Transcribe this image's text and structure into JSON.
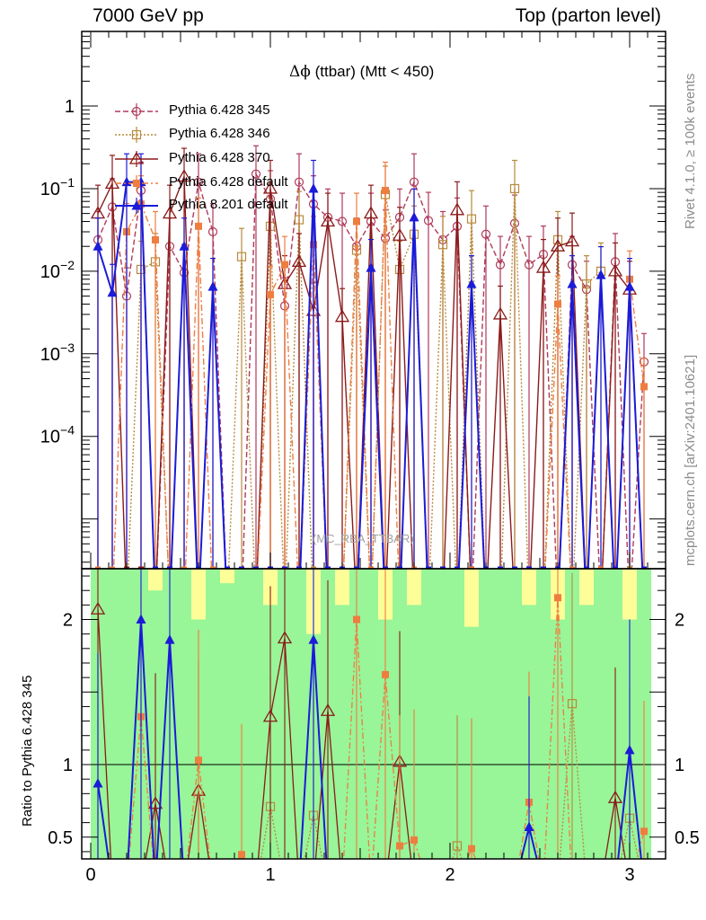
{
  "header": {
    "left": "7000 GeV pp",
    "right": "Top (parton level)"
  },
  "title": {
    "symbol": "Δϕ",
    "text": " (ttbar) (Mtt < 450)"
  },
  "side": {
    "rivet": "Rivet 4.1.0, ≥ 100k events",
    "mcplots": "mcplots.cern.ch [arXiv:2401.10621]"
  },
  "watermark": "(MC_RBA_TTBAR)",
  "colors": {
    "p345": "#b03a5b",
    "p346": "#b88a3c",
    "p370": "#8b1a1a",
    "p6def": "#ee7d40",
    "p8": "#1b1bd8",
    "band_green": "#98f598",
    "band_yellow": "#fefe98"
  },
  "chart_data": {
    "type": "scatter",
    "main": {
      "xlim": [
        -0.05,
        3.2
      ],
      "yscale": "log",
      "ylim": [
        2.5e-06,
        8
      ],
      "ytick_labels": [
        "1",
        "10^-1",
        "10^-2",
        "10^-3",
        "10^-4"
      ],
      "ytick_values": [
        1,
        0.1,
        0.01,
        0.001,
        0.0001
      ]
    },
    "ratio": {
      "ylim": [
        0.35,
        2.35
      ],
      "ylabel": "Ratio to Pythia 6.428 345",
      "ytick_labels": [
        "0.5",
        "1",
        "2"
      ],
      "ytick_values": [
        0.5,
        1,
        2
      ]
    },
    "x_tick_labels": [
      "0",
      "1",
      "2",
      "3"
    ],
    "x_tick_values": [
      0,
      1,
      2,
      3
    ],
    "x": [
      0.04,
      0.12,
      0.2,
      0.28,
      0.36,
      0.44,
      0.52,
      0.6,
      0.68,
      0.76,
      0.84,
      0.92,
      1.0,
      1.08,
      1.16,
      1.24,
      1.32,
      1.4,
      1.48,
      1.56,
      1.64,
      1.72,
      1.8,
      1.88,
      1.96,
      2.04,
      2.12,
      2.2,
      2.28,
      2.36,
      2.44,
      2.52,
      2.6,
      2.68,
      2.76,
      2.84,
      2.92,
      3.0,
      3.08
    ],
    "series": [
      {
        "name": "Pythia 6.428 345",
        "key": "p345",
        "marker": "open-circle",
        "line": "dash",
        "values": [
          0.024,
          0.06,
          0.005,
          0.095,
          0.0,
          0.02,
          0.0096,
          0.12,
          0.03,
          0.0,
          0.0,
          0.15,
          0.075,
          0.0038,
          0.12,
          0.065,
          0.045,
          0.04,
          0.02,
          0.04,
          0.025,
          0.045,
          0.12,
          0.041,
          0.024,
          0.035,
          0.0,
          0.028,
          0.012,
          0.038,
          0.012,
          0.016,
          0.0,
          0.012,
          0.006,
          0.0,
          0.013,
          0.0,
          0.0008
        ]
      },
      {
        "name": "Pythia 6.428 346",
        "key": "p346",
        "marker": "open-square",
        "line": "dot",
        "values": [
          0.0,
          0.0,
          0.0,
          0.0105,
          0.013,
          0.0,
          0.0,
          0.0,
          0.0,
          0.0,
          0.015,
          0.0,
          0.035,
          0.0,
          0.042,
          0.0,
          0.0,
          0.0,
          0.018,
          0.0,
          0.085,
          0.0105,
          0.028,
          0.0,
          0.021,
          0.0,
          0.043,
          0.0,
          0.0,
          0.1,
          0.0,
          0.0,
          0.024,
          0.0,
          0.007,
          0.01,
          0.0,
          0.0,
          0.0
        ]
      },
      {
        "name": "Pythia 6.428 370",
        "key": "p370",
        "marker": "open-triangle",
        "line": "solid",
        "values": [
          0.05,
          0.115,
          0.0,
          0.0,
          0.0,
          0.05,
          0.14,
          0.0,
          0.0,
          0.0,
          0.0,
          0.0,
          0.1,
          0.007,
          0.013,
          0.0033,
          0.04,
          0.0028,
          0.0,
          0.05,
          0.0,
          0.027,
          0.0,
          0.0,
          0.0,
          0.055,
          0.0,
          0.0,
          0.003,
          0.0,
          0.0,
          0.011,
          0.02,
          0.023,
          0.0,
          0.0,
          0.01,
          0.006,
          0.0
        ]
      },
      {
        "name": "Pythia 6.428 default",
        "key": "p6def",
        "marker": "filled-square",
        "line": "dashdot",
        "values": [
          0.0,
          0.0,
          0.03,
          0.065,
          0.024,
          0.0,
          0.0,
          0.035,
          0.0,
          0.0,
          0.0,
          0.0,
          0.0052,
          0.012,
          0.0,
          0.021,
          0.0,
          0.0,
          0.04,
          0.0,
          0.095,
          0.0,
          0.0,
          0.0,
          0.0,
          0.0,
          0.0,
          0.0,
          0.0,
          0.0,
          0.0,
          0.0,
          0.004,
          0.0,
          0.0,
          0.0,
          0.0,
          0.008,
          0.0004
        ]
      },
      {
        "name": "Pythia 8.201 default",
        "key": "p8",
        "marker": "filled-triangle",
        "line": "solid",
        "values": [
          0.02,
          0.0055,
          0.12,
          0.12,
          0.0,
          0.0,
          0.02,
          0.0,
          0.0065,
          0.0,
          0.0,
          0.0,
          0.0,
          0.0,
          0.0,
          0.1,
          0.0,
          0.0,
          0.0,
          0.011,
          0.0,
          0.0,
          0.045,
          0.0,
          0.0,
          0.0,
          0.007,
          0.0,
          0.0,
          0.0,
          0.0,
          0.0,
          0.0,
          0.007,
          0.0,
          0.009,
          0.0,
          0.0065,
          0.0
        ]
      }
    ],
    "ratio_points": {
      "p346": [
        0.0,
        0.0,
        0.0,
        0.0,
        0.0,
        0.0,
        0.0,
        0.0,
        0.0,
        0.0,
        0.0,
        0.0,
        0.71,
        0.0,
        0.0,
        0.65,
        0.0,
        0.0,
        0.0,
        0.0,
        0.0,
        0.0,
        0.0,
        0.0,
        0.0,
        0.44,
        0.0,
        0.0,
        0.0,
        0.0,
        0.0,
        0.0,
        0.0,
        1.42,
        0.0,
        0.0,
        0.0,
        0.63,
        0.0
      ],
      "p370": [
        2.07,
        0.0,
        0.0,
        0.0,
        0.73,
        0.0,
        0.0,
        0.82,
        0.0,
        0.0,
        0.0,
        0.0,
        1.33,
        1.87,
        0.0,
        0.0,
        1.37,
        0.0,
        0.0,
        0.0,
        0.0,
        1.02,
        0.0,
        0.0,
        0.0,
        0.0,
        0.0,
        0.0,
        0.0,
        0.0,
        0.0,
        0.0,
        0.0,
        0.0,
        0.0,
        0.0,
        0.77,
        0.0,
        0.0
      ],
      "p6def": [
        0.0,
        0.0,
        0.0,
        1.33,
        0.0,
        0.0,
        0.0,
        1.03,
        0.0,
        0.0,
        0.38,
        0.0,
        0.0,
        0.0,
        0.0,
        0.0,
        0.0,
        0.0,
        2.0,
        0.0,
        1.62,
        0.44,
        0.48,
        0.0,
        0.0,
        0.0,
        0.42,
        0.0,
        0.0,
        0.0,
        0.74,
        0.0,
        2.15,
        0.0,
        0.0,
        0.0,
        0.0,
        0.0,
        0.54
      ],
      "p8": [
        0.87,
        0.0,
        0.0,
        2.0,
        0.0,
        1.86,
        0.0,
        0.0,
        0.0,
        0.0,
        0.0,
        0.0,
        0.0,
        0.0,
        0.0,
        1.86,
        0.0,
        0.0,
        0.0,
        0.0,
        0.0,
        0.0,
        0.0,
        0.0,
        0.0,
        0.0,
        0.0,
        0.0,
        0.0,
        0.0,
        0.57,
        0.0,
        0.0,
        0.0,
        0.0,
        0.0,
        0.0,
        1.1,
        0.0
      ]
    },
    "uncertainty_band": {
      "bin_edges": [
        0.0,
        0.08,
        0.16,
        0.24,
        0.32,
        0.4,
        0.48,
        0.56,
        0.64,
        0.72,
        0.8,
        0.88,
        0.96,
        1.04,
        1.12,
        1.2,
        1.28,
        1.36,
        1.44,
        1.52,
        1.6,
        1.68,
        1.76,
        1.84,
        1.92,
        2.0,
        2.08,
        2.16,
        2.24,
        2.32,
        2.4,
        2.48,
        2.56,
        2.64,
        2.72,
        2.8,
        2.88,
        2.96,
        3.04,
        3.12
      ],
      "green_lo": [
        0.35,
        0.35,
        0.35,
        0.35,
        0.35,
        0.35,
        0.35,
        0.35,
        0.35,
        0.35,
        0.35,
        0.35,
        0.35,
        0.35,
        0.35,
        0.35,
        0.35,
        0.35,
        0.35,
        0.35,
        0.35,
        0.35,
        0.35,
        0.35,
        0.35,
        0.35,
        0.35,
        0.35,
        0.35,
        0.35,
        0.35,
        0.35,
        0.35,
        0.35,
        0.35,
        0.35,
        0.35,
        0.35,
        0.35
      ],
      "green_hi": [
        2.35,
        2.35,
        2.35,
        2.35,
        2.2,
        2.35,
        2.35,
        2.0,
        2.35,
        2.25,
        2.35,
        2.35,
        2.1,
        2.35,
        2.35,
        1.9,
        2.35,
        2.1,
        2.35,
        2.35,
        2.0,
        2.35,
        2.1,
        2.35,
        2.35,
        2.35,
        1.95,
        2.35,
        2.35,
        2.35,
        2.1,
        2.35,
        2.0,
        2.35,
        2.1,
        2.35,
        2.35,
        2.0,
        2.35
      ],
      "yellow_hi": [
        2.35,
        2.35,
        2.35,
        2.35,
        2.35,
        2.35,
        2.35,
        2.35,
        2.35,
        2.35,
        2.35,
        2.35,
        2.35,
        2.35,
        2.35,
        2.35,
        2.35,
        2.35,
        2.35,
        2.35,
        2.35,
        2.35,
        2.35,
        2.35,
        2.35,
        2.35,
        2.35,
        2.35,
        2.35,
        2.35,
        2.35,
        2.35,
        2.35,
        2.35,
        2.35,
        2.35,
        2.35,
        2.35,
        2.35
      ],
      "yellow_lo_gaps": [
        0.35,
        0.35,
        0.35,
        0.35,
        0.35,
        0.35,
        0.35,
        0.35,
        0.35,
        0.35,
        0.35,
        0.35,
        0.35,
        0.35,
        0.35,
        0.35,
        0.35,
        0.35,
        0.35,
        0.35,
        0.35,
        0.35,
        0.35,
        0.35,
        0.35,
        0.35,
        0.35,
        0.35,
        0.35,
        0.35,
        0.35,
        0.35,
        0.35,
        0.35,
        0.35,
        0.35,
        0.35,
        0.35,
        0.35
      ]
    }
  }
}
